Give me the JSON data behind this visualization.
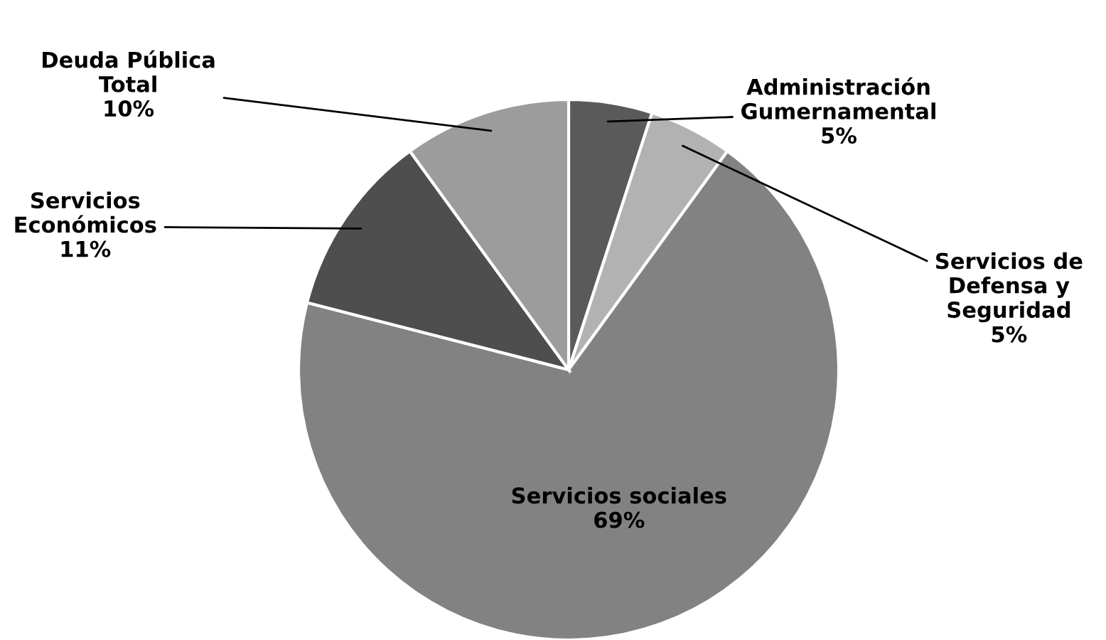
{
  "chart_data": {
    "type": "pie",
    "categories": [
      "Administración\nGumernamental",
      "Servicios de\nDefensa y\nSeguridad",
      "Servicios sociales",
      "Servicios\nEconómicos",
      "Deuda Pública\nTotal"
    ],
    "values": [
      5,
      5,
      69,
      11,
      10
    ],
    "value_labels": [
      "5%",
      "5%",
      "69%",
      "11%",
      "10%"
    ],
    "colors": [
      "#5a5a5a",
      "#b2b2b2",
      "#828282",
      "#4e4e4e",
      "#9c9c9c"
    ],
    "legend": false
  }
}
